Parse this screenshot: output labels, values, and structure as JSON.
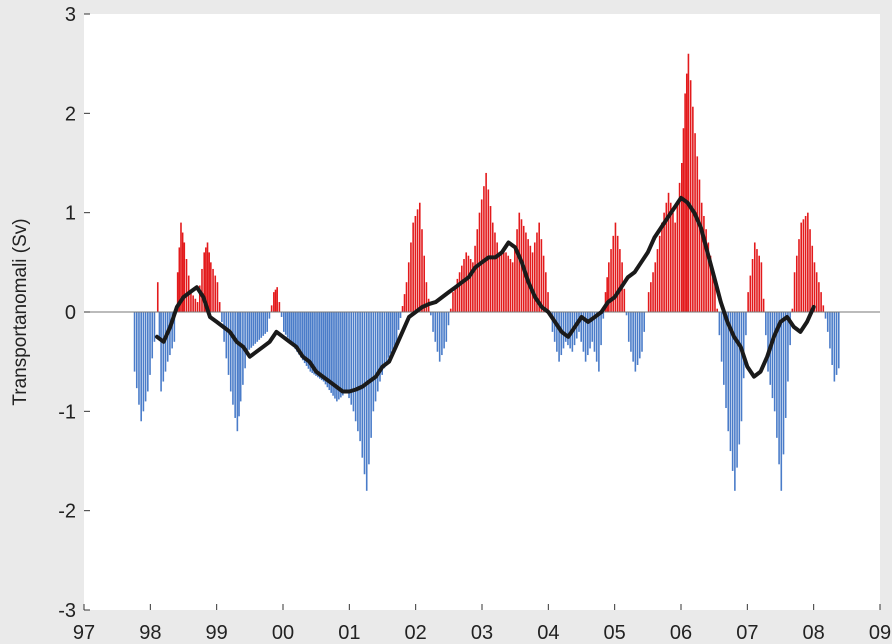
{
  "chart_data": {
    "type": "area",
    "title": "",
    "xlabel": "",
    "ylabel": "Transportanomali (Sv)",
    "xlim": [
      1997,
      2009
    ],
    "ylim": [
      -3,
      3
    ],
    "x_ticks": [
      1997,
      1998,
      1999,
      2000,
      2001,
      2002,
      2003,
      2004,
      2005,
      2006,
      2007,
      2008,
      2009
    ],
    "x_tick_labels": [
      "97",
      "98",
      "99",
      "00",
      "01",
      "02",
      "03",
      "04",
      "05",
      "06",
      "07",
      "08",
      "09"
    ],
    "y_ticks": [
      -3,
      -2,
      -1,
      0,
      1,
      2,
      3
    ],
    "y_tick_labels": [
      "-3",
      "-2",
      "-1",
      "0",
      "1",
      "2",
      "3"
    ],
    "grid": false,
    "legend": "none",
    "colors": {
      "positive": "#e31a1c",
      "negative": "#4a7cc9",
      "smooth": "#1a1a1a",
      "background": "#ffffff",
      "frame": "#eaeaea"
    },
    "series": [
      {
        "style": "filled-anomaly",
        "x": [
          1997.75,
          1997.85,
          1997.95,
          1998.05,
          1998.1,
          1998.15,
          1998.25,
          1998.35,
          1998.4,
          1998.45,
          1998.5,
          1998.6,
          1998.7,
          1998.8,
          1998.85,
          1998.9,
          1999.0,
          1999.1,
          1999.2,
          1999.3,
          1999.35,
          1999.45,
          1999.6,
          1999.75,
          1999.85,
          1999.9,
          2000.0,
          2000.2,
          2000.4,
          2000.6,
          2000.8,
          2000.95,
          2001.05,
          2001.15,
          2001.25,
          2001.35,
          2001.45,
          2001.55,
          2001.7,
          2001.85,
          2001.95,
          2002.05,
          2002.15,
          2002.25,
          2002.35,
          2002.45,
          2002.55,
          2002.65,
          2002.75,
          2002.85,
          2002.95,
          2003.05,
          2003.15,
          2003.25,
          2003.35,
          2003.45,
          2003.55,
          2003.65,
          2003.75,
          2003.85,
          2003.95,
          2004.05,
          2004.15,
          2004.25,
          2004.35,
          2004.45,
          2004.55,
          2004.65,
          2004.75,
          2004.85,
          2004.9,
          2005.0,
          2005.1,
          2005.2,
          2005.3,
          2005.4,
          2005.5,
          2005.6,
          2005.7,
          2005.8,
          2005.9,
          2006.0,
          2006.05,
          2006.1,
          2006.2,
          2006.3,
          2006.4,
          2006.5,
          2006.6,
          2006.7,
          2006.8,
          2006.9,
          2007.0,
          2007.1,
          2007.2,
          2007.3,
          2007.4,
          2007.5,
          2007.6,
          2007.7,
          2007.8,
          2007.9,
          2008.0,
          2008.1,
          2008.2,
          2008.3,
          2008.4
        ],
        "y": [
          -0.6,
          -1.1,
          -0.8,
          -0.3,
          0.3,
          -0.8,
          -0.5,
          -0.3,
          0.4,
          0.9,
          0.7,
          0.2,
          0.1,
          0.6,
          0.7,
          0.5,
          0.3,
          -0.3,
          -0.8,
          -1.2,
          -0.9,
          -0.4,
          -0.3,
          -0.2,
          0.2,
          0.25,
          -0.2,
          -0.4,
          -0.6,
          -0.7,
          -0.9,
          -0.8,
          -1.0,
          -1.3,
          -1.8,
          -1.0,
          -0.7,
          -0.5,
          -0.3,
          0.3,
          0.9,
          1.1,
          0.3,
          -0.2,
          -0.5,
          -0.3,
          0.2,
          0.4,
          0.6,
          0.5,
          1.0,
          1.4,
          0.9,
          0.6,
          0.6,
          0.5,
          1.0,
          0.8,
          0.6,
          0.9,
          0.4,
          -0.2,
          -0.5,
          -0.3,
          -0.4,
          -0.2,
          -0.5,
          -0.3,
          -0.6,
          0.2,
          0.5,
          0.9,
          0.5,
          -0.3,
          -0.6,
          -0.4,
          0.2,
          0.5,
          0.9,
          1.2,
          0.9,
          1.5,
          2.2,
          2.6,
          1.8,
          1.1,
          0.7,
          0.3,
          -0.5,
          -1.2,
          -1.8,
          -1.1,
          0.2,
          0.7,
          0.5,
          -0.6,
          -1.0,
          -1.8,
          -0.7,
          0.4,
          0.9,
          1.0,
          0.5,
          0.2,
          -0.2,
          -0.7,
          -0.5
        ]
      },
      {
        "style": "smoothed-line",
        "x": [
          1998.1,
          1998.2,
          1998.3,
          1998.4,
          1998.5,
          1998.6,
          1998.7,
          1998.8,
          1998.9,
          1999.0,
          1999.1,
          1999.2,
          1999.3,
          1999.4,
          1999.5,
          1999.6,
          1999.7,
          1999.8,
          1999.9,
          2000.0,
          2000.1,
          2000.2,
          2000.3,
          2000.4,
          2000.5,
          2000.6,
          2000.7,
          2000.8,
          2000.9,
          2001.0,
          2001.1,
          2001.2,
          2001.3,
          2001.4,
          2001.5,
          2001.6,
          2001.7,
          2001.8,
          2001.9,
          2002.0,
          2002.1,
          2002.2,
          2002.3,
          2002.4,
          2002.5,
          2002.6,
          2002.7,
          2002.8,
          2002.9,
          2003.0,
          2003.1,
          2003.2,
          2003.3,
          2003.4,
          2003.5,
          2003.6,
          2003.7,
          2003.8,
          2003.9,
          2004.0,
          2004.1,
          2004.2,
          2004.3,
          2004.4,
          2004.5,
          2004.6,
          2004.7,
          2004.8,
          2004.9,
          2005.0,
          2005.1,
          2005.2,
          2005.3,
          2005.4,
          2005.5,
          2005.6,
          2005.7,
          2005.8,
          2005.9,
          2006.0,
          2006.1,
          2006.2,
          2006.3,
          2006.4,
          2006.5,
          2006.6,
          2006.7,
          2006.8,
          2006.9,
          2007.0,
          2007.1,
          2007.2,
          2007.3,
          2007.4,
          2007.5,
          2007.6,
          2007.7,
          2007.8,
          2007.9,
          2008.0
        ],
        "y": [
          -0.25,
          -0.3,
          -0.15,
          0.05,
          0.15,
          0.2,
          0.25,
          0.15,
          -0.05,
          -0.1,
          -0.15,
          -0.2,
          -0.3,
          -0.35,
          -0.45,
          -0.4,
          -0.35,
          -0.3,
          -0.2,
          -0.25,
          -0.3,
          -0.35,
          -0.45,
          -0.5,
          -0.6,
          -0.65,
          -0.7,
          -0.75,
          -0.8,
          -0.8,
          -0.78,
          -0.75,
          -0.7,
          -0.65,
          -0.55,
          -0.5,
          -0.35,
          -0.2,
          -0.05,
          0.0,
          0.05,
          0.08,
          0.1,
          0.15,
          0.2,
          0.25,
          0.3,
          0.35,
          0.45,
          0.5,
          0.55,
          0.55,
          0.6,
          0.7,
          0.65,
          0.5,
          0.3,
          0.15,
          0.05,
          0.0,
          -0.1,
          -0.2,
          -0.25,
          -0.15,
          -0.05,
          -0.1,
          -0.05,
          0.0,
          0.1,
          0.15,
          0.25,
          0.35,
          0.4,
          0.5,
          0.6,
          0.75,
          0.85,
          0.95,
          1.05,
          1.15,
          1.1,
          1.0,
          0.85,
          0.6,
          0.35,
          0.1,
          -0.1,
          -0.25,
          -0.35,
          -0.55,
          -0.65,
          -0.6,
          -0.45,
          -0.25,
          -0.1,
          -0.05,
          -0.15,
          -0.2,
          -0.1,
          0.05
        ]
      }
    ]
  }
}
